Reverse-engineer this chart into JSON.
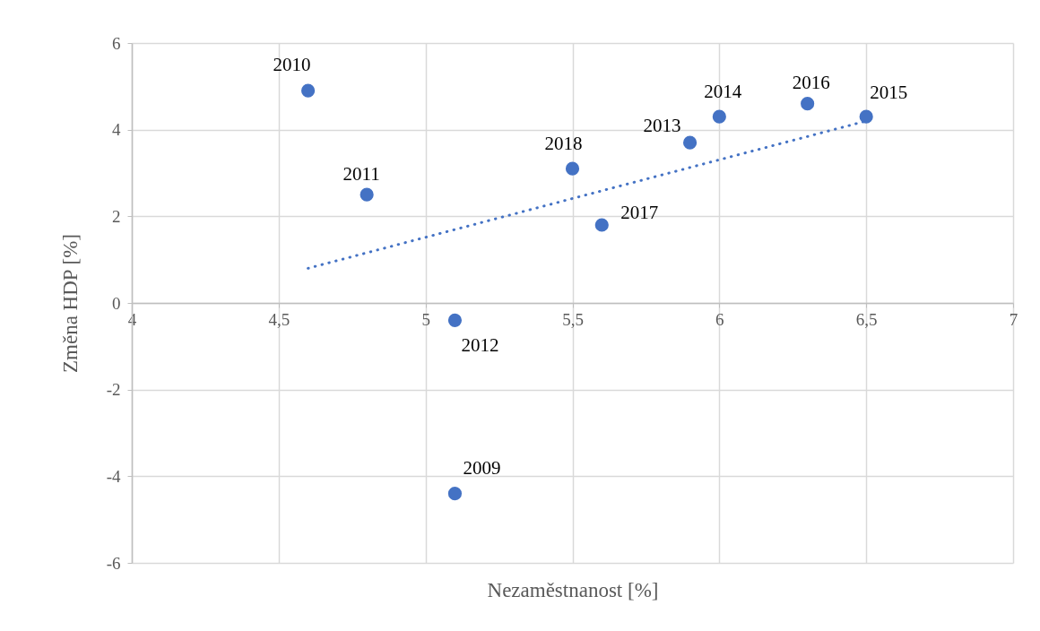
{
  "chart_data": {
    "type": "scatter",
    "xlabel": "Nezaměstnanost [%]",
    "ylabel": "Změna HDP [%]",
    "xlim": [
      4,
      7
    ],
    "ylim": [
      -6,
      6
    ],
    "xticks": [
      4,
      {
        "value": 4.5,
        "label": "4,5"
      },
      5,
      {
        "value": 5.5,
        "label": "5,5"
      },
      6,
      {
        "value": 6.5,
        "label": "6,5"
      },
      7
    ],
    "yticks": [
      -6,
      -4,
      -2,
      0,
      2,
      4,
      6
    ],
    "grid": true,
    "series": [
      {
        "type": "line",
        "color": "#4472c4",
        "line_style": "dotted",
        "marker": "none",
        "x": [
          4.6,
          6.5
        ],
        "values": [
          0.8,
          4.2
        ]
      },
      {
        "color": "#4472c4",
        "marker": "circle",
        "x": [
          5.1,
          4.6,
          4.8,
          5.1,
          5.9,
          6.0,
          6.5,
          6.3,
          5.6,
          5.5
        ],
        "values": [
          -4.4,
          4.9,
          2.5,
          -0.4,
          3.7,
          4.3,
          4.3,
          4.6,
          1.8,
          3.1
        ]
      }
    ],
    "annotations": [
      {
        "text": "2009",
        "x": 5.1,
        "y": -4.4
      },
      {
        "text": "2010",
        "x": 4.6,
        "y": 4.9
      },
      {
        "text": "2011",
        "x": 4.8,
        "y": 2.5
      },
      {
        "text": "2012",
        "x": 5.1,
        "y": -0.4
      },
      {
        "text": "2013",
        "x": 5.9,
        "y": 3.7
      },
      {
        "text": "2014",
        "x": 6.0,
        "y": 4.3
      },
      {
        "text": "2015",
        "x": 6.5,
        "y": 4.3
      },
      {
        "text": "2016",
        "x": 6.3,
        "y": 4.6
      },
      {
        "text": "2017",
        "x": 5.6,
        "y": 1.8
      },
      {
        "text": "2018",
        "x": 5.5,
        "y": 3.1
      }
    ]
  }
}
